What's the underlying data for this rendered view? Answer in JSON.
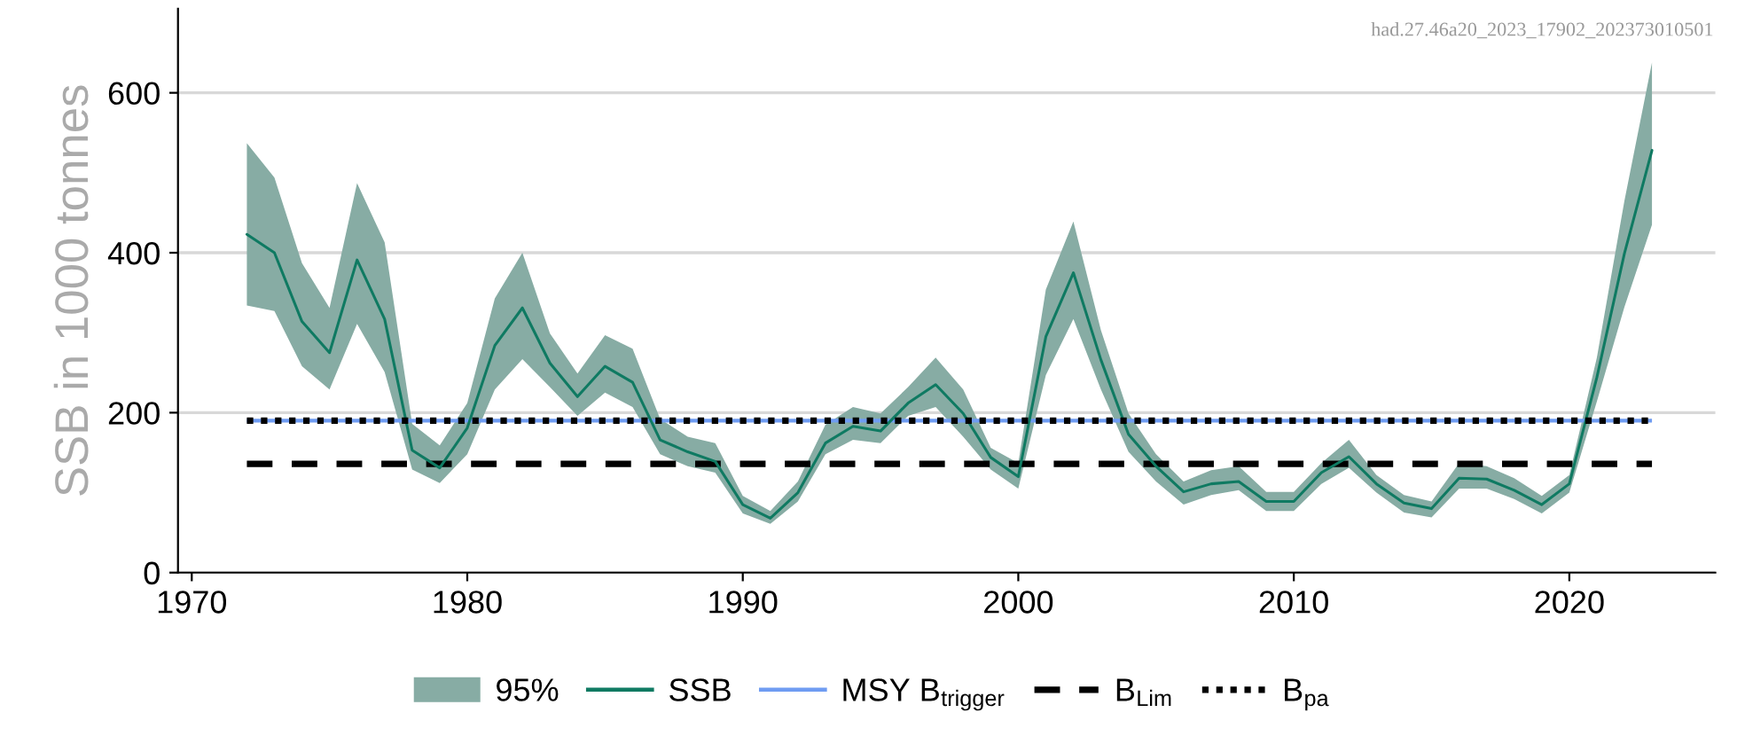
{
  "chart_data": {
    "type": "line",
    "ylabel": "SSB in 1000 tonnes",
    "annotations": [
      "had.27.46a20_2023_17902_202373010501",
      "95%"
    ],
    "x": [
      1972,
      1973,
      1974,
      1975,
      1976,
      1977,
      1978,
      1979,
      1980,
      1981,
      1982,
      1983,
      1984,
      1985,
      1986,
      1987,
      1988,
      1989,
      1990,
      1991,
      1992,
      1993,
      1994,
      1995,
      1996,
      1997,
      1998,
      1999,
      2000,
      2001,
      2002,
      2003,
      2004,
      2005,
      2006,
      2007,
      2008,
      2009,
      2010,
      2011,
      2012,
      2013,
      2014,
      2015,
      2016,
      2017,
      2018,
      2019,
      2020,
      2021,
      2022,
      2023
    ],
    "series": [
      {
        "name": "SSB",
        "color": "#0f7a62",
        "values": [
          423,
          400,
          314,
          275,
          391,
          317,
          153,
          131,
          181,
          284,
          331,
          262,
          220,
          258,
          238,
          166,
          151,
          139,
          85,
          68,
          100,
          162,
          183,
          177,
          212,
          235,
          199,
          144,
          120,
          295,
          375,
          266,
          173,
          133,
          101,
          111,
          114,
          89,
          89,
          125,
          145,
          111,
          87,
          80,
          118,
          117,
          103,
          85,
          111,
          244,
          399,
          528
        ],
        "lower": [
          334,
          327,
          258,
          229,
          311,
          251,
          129,
          112,
          148,
          229,
          267,
          232,
          196,
          225,
          207,
          148,
          133,
          125,
          74,
          61,
          89,
          148,
          166,
          162,
          196,
          207,
          170,
          129,
          105,
          247,
          317,
          229,
          151,
          114,
          85,
          97,
          103,
          77,
          77,
          111,
          131,
          100,
          75,
          69,
          105,
          105,
          92,
          74,
          100,
          214,
          332,
          435
        ],
        "upper": [
          537,
          494,
          387,
          331,
          487,
          413,
          186,
          159,
          212,
          343,
          400,
          299,
          249,
          297,
          280,
          192,
          170,
          162,
          96,
          77,
          114,
          185,
          207,
          199,
          232,
          269,
          229,
          156,
          137,
          354,
          439,
          303,
          199,
          148,
          114,
          128,
          133,
          101,
          101,
          137,
          166,
          122,
          97,
          89,
          137,
          133,
          118,
          96,
          122,
          269,
          465,
          638
        ]
      }
    ],
    "ref_lines": [
      {
        "axis": "y",
        "value": 190,
        "label": "MSY B$_{trigger}$",
        "color": "#6f9cf2",
        "line_style": "solid"
      },
      {
        "axis": "y",
        "value": 136,
        "label": "B$_{Lim}$",
        "color": "#000000",
        "line_style": "dashed"
      },
      {
        "axis": "y",
        "value": 190,
        "label": "B$_{pa}$",
        "color": "#000000",
        "line_style": "dotted"
      }
    ],
    "xlim": [
      1969.5,
      2025.3
    ],
    "xticks": [
      1970,
      1980,
      1990,
      2000,
      2010,
      2020
    ],
    "ylim": [
      0,
      705
    ],
    "yticks": [
      0,
      200,
      400,
      600
    ],
    "grid": "y",
    "legend": "bottom"
  }
}
